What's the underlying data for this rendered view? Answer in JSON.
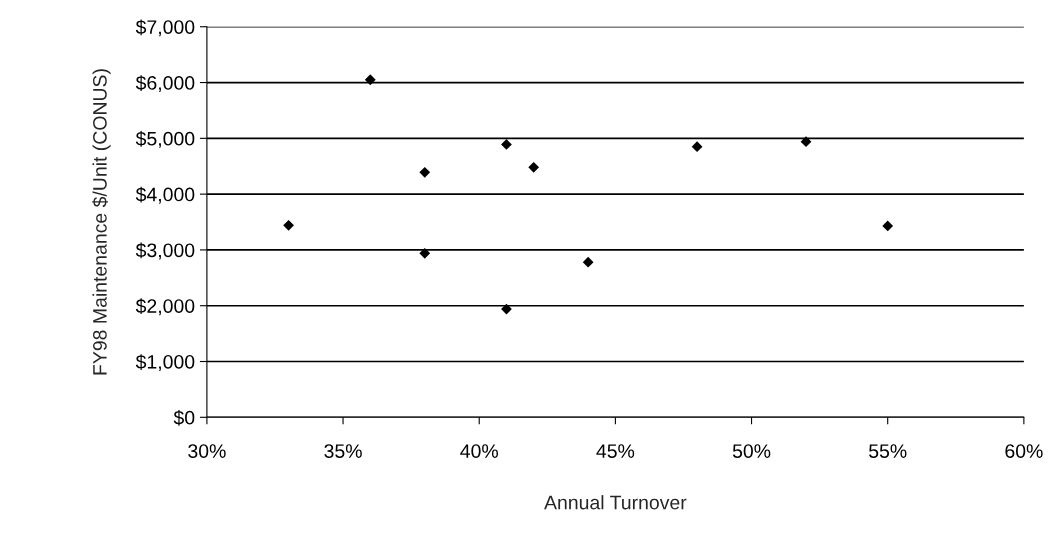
{
  "chart_data": {
    "type": "scatter",
    "xlabel": "Annual Turnover",
    "ylabel": "FY98 Maintenance $/Unit (CONUS)",
    "x": [
      33,
      36,
      38,
      38,
      41,
      41,
      42,
      44,
      48,
      52,
      55
    ],
    "series": [
      {
        "color": "#000000",
        "values": [
          3440,
          6050,
          4390,
          2940,
          4890,
          1940,
          4480,
          2780,
          4850,
          4940,
          3430
        ]
      }
    ],
    "xlim": [
      30,
      60
    ],
    "xticks": [
      {
        "value": 30,
        "label": "30%"
      },
      {
        "value": 35,
        "label": "35%"
      },
      {
        "value": 40,
        "label": "40%"
      },
      {
        "value": 45,
        "label": "45%"
      },
      {
        "value": 50,
        "label": "50%"
      },
      {
        "value": 55,
        "label": "55%"
      },
      {
        "value": 60,
        "label": "60%"
      }
    ],
    "ylim": [
      0,
      7000
    ],
    "yticks": [
      {
        "value": 0,
        "label": "$0"
      },
      {
        "value": 1000,
        "label": "$1,000"
      },
      {
        "value": 2000,
        "label": "$2,000"
      },
      {
        "value": 3000,
        "label": "$3,000"
      },
      {
        "value": 4000,
        "label": "$4,000"
      },
      {
        "value": 5000,
        "label": "$5,000"
      },
      {
        "value": 6000,
        "label": "$6,000"
      },
      {
        "value": 7000,
        "label": "$7,000"
      }
    ],
    "grid": "y",
    "marker": "diamond"
  }
}
